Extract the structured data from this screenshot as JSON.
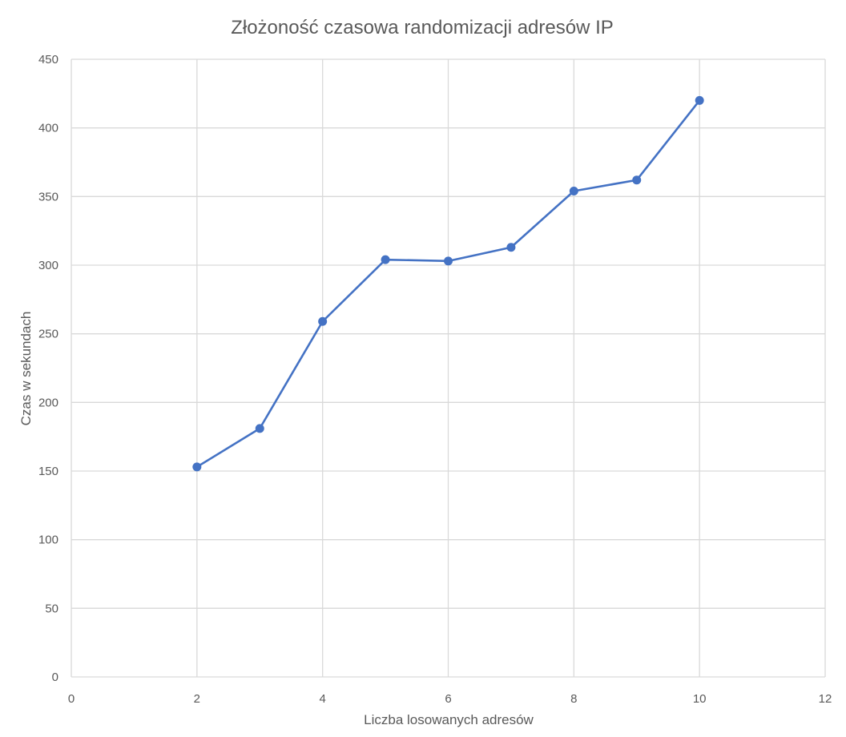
{
  "chart_data": {
    "type": "scatter",
    "title": "Złożoność czasowa randomizacji adresów IP",
    "xlabel": "Liczba losowanych adresów",
    "ylabel": "Czas w sekundach",
    "xlim": [
      0,
      12
    ],
    "ylim": [
      0,
      450
    ],
    "xticks": [
      0,
      2,
      4,
      6,
      8,
      10,
      12
    ],
    "yticks": [
      0,
      50,
      100,
      150,
      200,
      250,
      300,
      350,
      400,
      450
    ],
    "grid": true,
    "lines_connected": true,
    "series_color": "#4472c4",
    "x": [
      2,
      3,
      4,
      5,
      6,
      7,
      8,
      9,
      10
    ],
    "y": [
      153,
      181,
      259,
      304,
      303,
      313,
      354,
      362,
      420
    ]
  }
}
